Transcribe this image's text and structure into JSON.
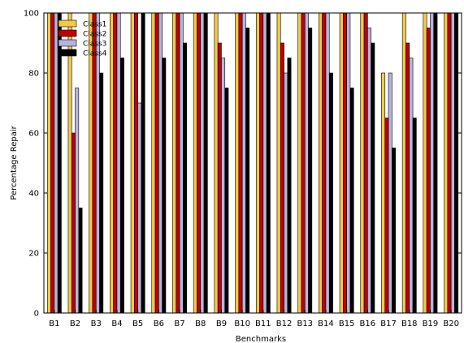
{
  "chart_data": {
    "type": "bar",
    "xlabel": "Benchmarks",
    "ylabel": "Percentage Repair",
    "ylim": [
      0,
      100
    ],
    "yticks": [
      "0",
      "20",
      "40",
      "60",
      "80",
      "100"
    ],
    "grid": false,
    "legend_position": "top-left",
    "categories": [
      "B1",
      "B2",
      "B3",
      "B4",
      "B5",
      "B6",
      "B7",
      "B8",
      "B9",
      "B10",
      "B11",
      "B12",
      "B13",
      "B14",
      "B15",
      "B16",
      "B17",
      "B18",
      "B19",
      "B20"
    ],
    "series": [
      {
        "name": "Class1",
        "color": "#f2c94c",
        "values": [
          100,
          100,
          100,
          100,
          100,
          100,
          100,
          100,
          100,
          100,
          100,
          100,
          100,
          100,
          100,
          100,
          80,
          100,
          100,
          100
        ]
      },
      {
        "name": "Class2",
        "color": "#c00000",
        "values": [
          100,
          60,
          100,
          100,
          100,
          100,
          100,
          100,
          90,
          100,
          100,
          90,
          100,
          100,
          100,
          100,
          65,
          90,
          95,
          100
        ]
      },
      {
        "name": "Class3",
        "color": "#b9b3dc",
        "values": [
          100,
          75,
          100,
          100,
          70,
          100,
          100,
          100,
          85,
          100,
          100,
          80,
          100,
          100,
          100,
          95,
          80,
          85,
          100,
          100
        ]
      },
      {
        "name": "Class4",
        "color": "#000000",
        "values": [
          100,
          35,
          80,
          85,
          100,
          85,
          90,
          100,
          75,
          95,
          100,
          85,
          95,
          80,
          75,
          90,
          55,
          65,
          100,
          100
        ]
      }
    ]
  }
}
